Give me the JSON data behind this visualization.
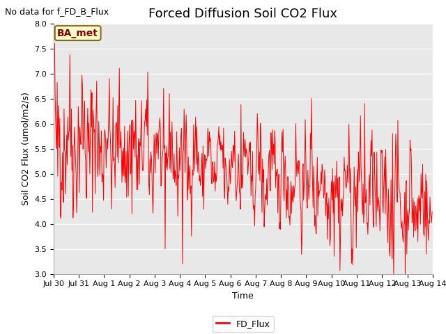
{
  "title": "Forced Diffusion Soil CO2 Flux",
  "xlabel": "Time",
  "ylabel_display": "Soil CO2 Flux (umol/m2/s)",
  "ylim": [
    3.0,
    8.0
  ],
  "yticks": [
    3.0,
    3.5,
    4.0,
    4.5,
    5.0,
    5.5,
    6.0,
    6.5,
    7.0,
    7.5,
    8.0
  ],
  "annotation_text": "No data for f_FD_B_Flux",
  "legend_label": "FD_Flux",
  "legend_box_label": "BA_met",
  "line_color": "#FF0000",
  "background_color": "#E8E8E8",
  "figure_background": "#FFFFFF",
  "title_fontsize": 13,
  "axis_fontsize": 9,
  "annot_fontsize": 9,
  "tick_fontsize": 8,
  "ba_fontsize": 10
}
